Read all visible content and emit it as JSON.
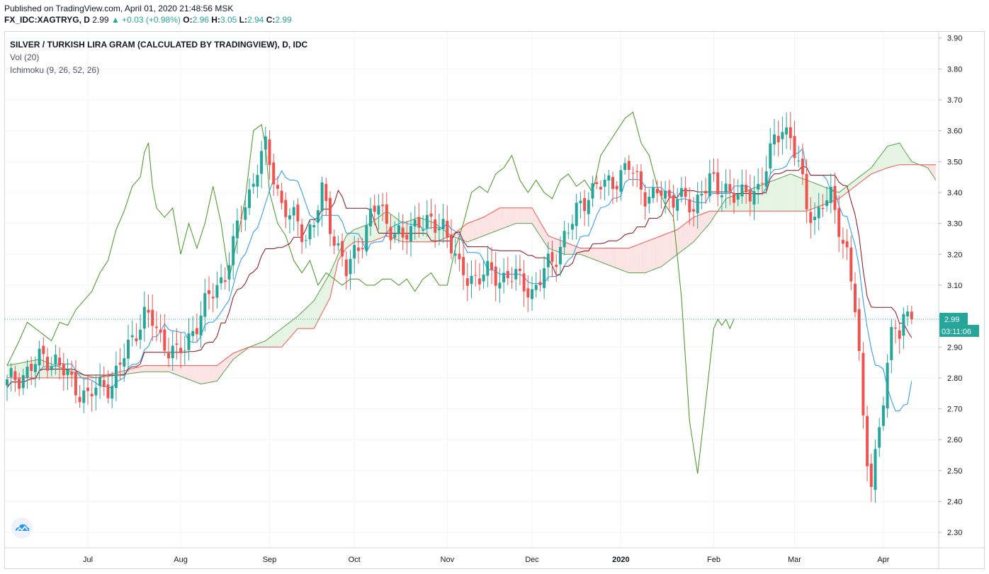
{
  "header": {
    "published": "Published on TradingView.com, April 01, 2020 21:48:56 MSK",
    "symbol": "FX_IDC:XAGTRYG, D",
    "last": "2.99",
    "change": "▲ +0.03 (+0.98%)",
    "o_label": "O:",
    "o": "2.96",
    "h_label": "H:",
    "h": "3.05",
    "l_label": "L:",
    "l": "2.94",
    "c_label": "C:",
    "c": "2.99"
  },
  "legend": {
    "title": "SILVER / TURKISH LIRA GRAM (CALCULATED BY TRADINGVIEW), D, IDC",
    "vol": "Vol (20)",
    "ichimoku": "Ichimoku (9, 26, 52, 26)"
  },
  "price_tag": {
    "value": "2.99",
    "countdown": "03:11:06"
  },
  "colors": {
    "up": "#26a69a",
    "down": "#ef5350",
    "conversion": "#2196f3",
    "base": "#8b0f1a",
    "lagging": "#43941f",
    "span_a": "#5aa14c",
    "span_b": "#ef5350",
    "cloud_bull": "#e6f4e3",
    "cloud_bear": "#fde4e4",
    "price_tag_bg": "#26a69a",
    "last_line": "#26a69a"
  },
  "icons": {
    "logo": "tradingview-cloud-icon"
  },
  "chart_data": {
    "type": "candlestick",
    "title": "SILVER / TURKISH LIRA GRAM (CALCULATED BY TRADINGVIEW), D, IDC",
    "ylim": [
      2.25,
      3.92
    ],
    "yticks": [
      "3.90",
      "3.80",
      "3.70",
      "3.60",
      "3.50",
      "3.40",
      "3.30",
      "3.20",
      "3.10",
      "3.00",
      "2.90",
      "2.80",
      "2.70",
      "2.60",
      "2.50",
      "2.40",
      "2.30"
    ],
    "xticks": [
      {
        "label": "Jul",
        "bar": 20
      },
      {
        "label": "Aug",
        "bar": 43
      },
      {
        "label": "Sep",
        "bar": 65
      },
      {
        "label": "Oct",
        "bar": 86
      },
      {
        "label": "Nov",
        "bar": 109
      },
      {
        "label": "Dec",
        "bar": 130
      },
      {
        "label": "2020",
        "bar": 152
      },
      {
        "label": "Feb",
        "bar": 175
      },
      {
        "label": "Mar",
        "bar": 195
      },
      {
        "label": "Apr",
        "bar": 217
      }
    ],
    "total_slots": 235,
    "last_price": 2.99,
    "anchors": [
      [
        0,
        2.78
      ],
      [
        3,
        2.8
      ],
      [
        6,
        2.84
      ],
      [
        9,
        2.86
      ],
      [
        12,
        2.86
      ],
      [
        14,
        2.82
      ],
      [
        16,
        2.78
      ],
      [
        18,
        2.76
      ],
      [
        20,
        2.74
      ],
      [
        22,
        2.76
      ],
      [
        24,
        2.78
      ],
      [
        26,
        2.78
      ],
      [
        28,
        2.84
      ],
      [
        30,
        2.9
      ],
      [
        32,
        2.96
      ],
      [
        34,
        3.0
      ],
      [
        36,
        2.98
      ],
      [
        38,
        2.93
      ],
      [
        40,
        2.9
      ],
      [
        42,
        2.87
      ],
      [
        44,
        2.9
      ],
      [
        46,
        2.96
      ],
      [
        48,
        3.0
      ],
      [
        50,
        3.06
      ],
      [
        52,
        3.1
      ],
      [
        54,
        3.14
      ],
      [
        56,
        3.22
      ],
      [
        58,
        3.34
      ],
      [
        60,
        3.4
      ],
      [
        62,
        3.48
      ],
      [
        64,
        3.54
      ],
      [
        66,
        3.46
      ],
      [
        68,
        3.36
      ],
      [
        70,
        3.32
      ],
      [
        72,
        3.3
      ],
      [
        74,
        3.26
      ],
      [
        76,
        3.3
      ],
      [
        78,
        3.4
      ],
      [
        80,
        3.3
      ],
      [
        82,
        3.22
      ],
      [
        84,
        3.14
      ],
      [
        86,
        3.2
      ],
      [
        88,
        3.26
      ],
      [
        90,
        3.32
      ],
      [
        92,
        3.36
      ],
      [
        94,
        3.3
      ],
      [
        96,
        3.28
      ],
      [
        98,
        3.24
      ],
      [
        100,
        3.28
      ],
      [
        102,
        3.32
      ],
      [
        104,
        3.3
      ],
      [
        106,
        3.28
      ],
      [
        108,
        3.3
      ],
      [
        110,
        3.24
      ],
      [
        112,
        3.14
      ],
      [
        114,
        3.12
      ],
      [
        116,
        3.13
      ],
      [
        118,
        3.14
      ],
      [
        120,
        3.13
      ],
      [
        122,
        3.12
      ],
      [
        124,
        3.14
      ],
      [
        126,
        3.12
      ],
      [
        128,
        3.1
      ],
      [
        130,
        3.08
      ],
      [
        132,
        3.12
      ],
      [
        134,
        3.16
      ],
      [
        136,
        3.2
      ],
      [
        138,
        3.26
      ],
      [
        140,
        3.3
      ],
      [
        142,
        3.36
      ],
      [
        144,
        3.4
      ],
      [
        146,
        3.42
      ],
      [
        148,
        3.42
      ],
      [
        150,
        3.44
      ],
      [
        152,
        3.46
      ],
      [
        154,
        3.48
      ],
      [
        156,
        3.44
      ],
      [
        158,
        3.4
      ],
      [
        160,
        3.38
      ],
      [
        162,
        3.4
      ],
      [
        164,
        3.38
      ],
      [
        166,
        3.4
      ],
      [
        168,
        3.36
      ],
      [
        170,
        3.34
      ],
      [
        172,
        3.42
      ],
      [
        174,
        3.44
      ],
      [
        176,
        3.4
      ],
      [
        178,
        3.42
      ],
      [
        180,
        3.4
      ],
      [
        182,
        3.38
      ],
      [
        184,
        3.4
      ],
      [
        186,
        3.42
      ],
      [
        188,
        3.48
      ],
      [
        190,
        3.56
      ],
      [
        192,
        3.62
      ],
      [
        194,
        3.58
      ],
      [
        196,
        3.48
      ],
      [
        198,
        3.36
      ],
      [
        200,
        3.32
      ],
      [
        202,
        3.36
      ],
      [
        204,
        3.38
      ],
      [
        206,
        3.3
      ],
      [
        208,
        3.2
      ],
      [
        210,
        3.02
      ],
      [
        211,
        2.86
      ],
      [
        212,
        2.66
      ],
      [
        213,
        2.55
      ],
      [
        214,
        2.48
      ],
      [
        215,
        2.55
      ],
      [
        216,
        2.62
      ],
      [
        217,
        2.72
      ],
      [
        218,
        2.84
      ],
      [
        219,
        2.94
      ],
      [
        220,
        2.98
      ],
      [
        221,
        2.97
      ],
      [
        222,
        3.0
      ],
      [
        223,
        2.98
      ],
      [
        224,
        2.99
      ]
    ],
    "lagging_anchors": [
      [
        0,
        2.84
      ],
      [
        3,
        2.92
      ],
      [
        5,
        2.98
      ],
      [
        7,
        2.96
      ],
      [
        9,
        2.94
      ],
      [
        11,
        2.92
      ],
      [
        13,
        2.98
      ],
      [
        15,
        2.97
      ],
      [
        17,
        3.02
      ],
      [
        19,
        3.05
      ],
      [
        21,
        3.08
      ],
      [
        23,
        3.14
      ],
      [
        25,
        3.18
      ],
      [
        27,
        3.28
      ],
      [
        29,
        3.34
      ],
      [
        31,
        3.42
      ],
      [
        33,
        3.45
      ],
      [
        34,
        3.53
      ],
      [
        35,
        3.56
      ],
      [
        36,
        3.42
      ],
      [
        37,
        3.35
      ],
      [
        39,
        3.32
      ],
      [
        41,
        3.35
      ],
      [
        43,
        3.2
      ],
      [
        45,
        3.3
      ],
      [
        47,
        3.22
      ],
      [
        49,
        3.3
      ],
      [
        51,
        3.42
      ],
      [
        53,
        3.3
      ],
      [
        55,
        3.12
      ],
      [
        57,
        3.25
      ],
      [
        59,
        3.38
      ],
      [
        61,
        3.6
      ],
      [
        63,
        3.62
      ],
      [
        64,
        3.55
      ],
      [
        65,
        3.4
      ],
      [
        67,
        3.3
      ],
      [
        69,
        3.26
      ],
      [
        71,
        3.18
      ],
      [
        73,
        3.14
      ],
      [
        75,
        3.18
      ],
      [
        77,
        3.1
      ],
      [
        79,
        3.14
      ],
      [
        81,
        3.12
      ],
      [
        83,
        3.1
      ],
      [
        85,
        3.12
      ],
      [
        87,
        3.12
      ],
      [
        89,
        3.1
      ],
      [
        91,
        3.1
      ],
      [
        93,
        3.12
      ],
      [
        95,
        3.12
      ],
      [
        97,
        3.1
      ],
      [
        99,
        3.12
      ],
      [
        101,
        3.08
      ],
      [
        103,
        3.12
      ],
      [
        105,
        3.14
      ],
      [
        107,
        3.1
      ],
      [
        109,
        3.1
      ],
      [
        111,
        3.22
      ],
      [
        113,
        3.3
      ],
      [
        115,
        3.4
      ],
      [
        117,
        3.42
      ],
      [
        119,
        3.4
      ],
      [
        121,
        3.46
      ],
      [
        123,
        3.48
      ],
      [
        125,
        3.52
      ],
      [
        127,
        3.44
      ],
      [
        129,
        3.4
      ],
      [
        131,
        3.44
      ],
      [
        133,
        3.4
      ],
      [
        135,
        3.38
      ],
      [
        137,
        3.44
      ],
      [
        139,
        3.46
      ],
      [
        141,
        3.42
      ],
      [
        143,
        3.44
      ],
      [
        145,
        3.4
      ],
      [
        147,
        3.52
      ],
      [
        149,
        3.56
      ],
      [
        151,
        3.6
      ],
      [
        153,
        3.64
      ],
      [
        155,
        3.66
      ],
      [
        157,
        3.56
      ],
      [
        159,
        3.52
      ],
      [
        161,
        3.42
      ],
      [
        163,
        3.36
      ],
      [
        165,
        3.32
      ],
      [
        167,
        3.06
      ],
      [
        169,
        2.66
      ],
      [
        171,
        2.49
      ],
      [
        173,
        2.72
      ],
      [
        175,
        2.96
      ],
      [
        176,
        2.99
      ],
      [
        177,
        2.97
      ],
      [
        178,
        2.99
      ],
      [
        179,
        2.96
      ],
      [
        180,
        2.99
      ]
    ],
    "span_a_anchors": [
      [
        0,
        2.84
      ],
      [
        8,
        2.86
      ],
      [
        16,
        2.82
      ],
      [
        22,
        2.8
      ],
      [
        28,
        2.81
      ],
      [
        34,
        2.82
      ],
      [
        40,
        2.82
      ],
      [
        44,
        2.8
      ],
      [
        48,
        2.78
      ],
      [
        52,
        2.79
      ],
      [
        56,
        2.86
      ],
      [
        60,
        2.9
      ],
      [
        64,
        2.92
      ],
      [
        68,
        2.96
      ],
      [
        72,
        3.0
      ],
      [
        76,
        3.05
      ],
      [
        80,
        3.14
      ],
      [
        82,
        3.2
      ],
      [
        84,
        3.26
      ],
      [
        86,
        3.28
      ],
      [
        90,
        3.3
      ],
      [
        94,
        3.34
      ],
      [
        98,
        3.3
      ],
      [
        102,
        3.32
      ],
      [
        106,
        3.3
      ],
      [
        110,
        3.26
      ],
      [
        114,
        3.24
      ],
      [
        118,
        3.26
      ],
      [
        122,
        3.28
      ],
      [
        126,
        3.3
      ],
      [
        130,
        3.3
      ],
      [
        134,
        3.22
      ],
      [
        138,
        3.2
      ],
      [
        142,
        3.2
      ],
      [
        146,
        3.18
      ],
      [
        150,
        3.16
      ],
      [
        154,
        3.14
      ],
      [
        158,
        3.14
      ],
      [
        162,
        3.16
      ],
      [
        166,
        3.2
      ],
      [
        170,
        3.24
      ],
      [
        174,
        3.3
      ],
      [
        178,
        3.38
      ],
      [
        182,
        3.4
      ],
      [
        186,
        3.42
      ],
      [
        190,
        3.44
      ],
      [
        194,
        3.46
      ],
      [
        198,
        3.44
      ],
      [
        202,
        3.42
      ],
      [
        206,
        3.4
      ],
      [
        210,
        3.44
      ],
      [
        214,
        3.48
      ],
      [
        218,
        3.55
      ],
      [
        221,
        3.56
      ],
      [
        224,
        3.5
      ],
      [
        228,
        3.48
      ],
      [
        230,
        3.44
      ]
    ],
    "span_b_anchors": [
      [
        0,
        2.8
      ],
      [
        8,
        2.8
      ],
      [
        16,
        2.8
      ],
      [
        22,
        2.8
      ],
      [
        28,
        2.82
      ],
      [
        34,
        2.84
      ],
      [
        40,
        2.84
      ],
      [
        44,
        2.84
      ],
      [
        48,
        2.84
      ],
      [
        52,
        2.84
      ],
      [
        56,
        2.88
      ],
      [
        60,
        2.9
      ],
      [
        64,
        2.9
      ],
      [
        68,
        2.9
      ],
      [
        72,
        2.96
      ],
      [
        76,
        2.96
      ],
      [
        80,
        3.06
      ],
      [
        82,
        3.18
      ],
      [
        84,
        3.22
      ],
      [
        86,
        3.24
      ],
      [
        90,
        3.24
      ],
      [
        94,
        3.26
      ],
      [
        98,
        3.24
      ],
      [
        102,
        3.24
      ],
      [
        106,
        3.24
      ],
      [
        110,
        3.26
      ],
      [
        114,
        3.3
      ],
      [
        118,
        3.32
      ],
      [
        122,
        3.35
      ],
      [
        126,
        3.35
      ],
      [
        130,
        3.35
      ],
      [
        134,
        3.26
      ],
      [
        138,
        3.24
      ],
      [
        142,
        3.22
      ],
      [
        146,
        3.22
      ],
      [
        150,
        3.22
      ],
      [
        154,
        3.22
      ],
      [
        158,
        3.24
      ],
      [
        162,
        3.26
      ],
      [
        166,
        3.28
      ],
      [
        170,
        3.32
      ],
      [
        174,
        3.34
      ],
      [
        178,
        3.34
      ],
      [
        182,
        3.34
      ],
      [
        186,
        3.34
      ],
      [
        190,
        3.34
      ],
      [
        194,
        3.34
      ],
      [
        198,
        3.34
      ],
      [
        202,
        3.36
      ],
      [
        206,
        3.38
      ],
      [
        210,
        3.42
      ],
      [
        214,
        3.46
      ],
      [
        218,
        3.48
      ],
      [
        221,
        3.49
      ],
      [
        224,
        3.49
      ],
      [
        228,
        3.49
      ],
      [
        230,
        3.49
      ]
    ]
  }
}
